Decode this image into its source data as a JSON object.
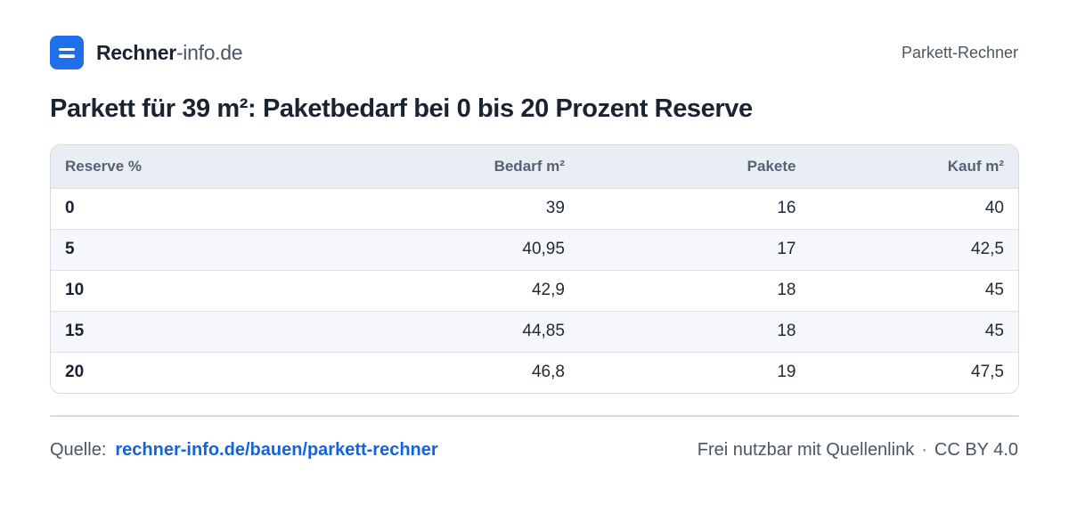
{
  "header": {
    "brand_strong": "Rechner",
    "brand_rest": "-info.de",
    "section": "Parkett-Rechner",
    "accent": "#1f6feb"
  },
  "title": "Parkett für 39 m²: Paketbedarf bei 0 bis 20 Prozent Reserve",
  "table": {
    "columns": [
      "Reserve %",
      "Bedarf m²",
      "Pakete",
      "Kauf m²"
    ],
    "rows": [
      [
        "0",
        "39",
        "16",
        "40"
      ],
      [
        "5",
        "40,95",
        "17",
        "42,5"
      ],
      [
        "10",
        "42,9",
        "18",
        "45"
      ],
      [
        "15",
        "44,85",
        "18",
        "45"
      ],
      [
        "20",
        "46,8",
        "19",
        "47,5"
      ]
    ]
  },
  "footer": {
    "source_label": "Quelle:",
    "source_link": "rechner-info.de/bauen/parkett-rechner",
    "license_text": "Frei nutzbar mit Quellenlink",
    "separator": "·",
    "license_name": "CC BY 4.0",
    "link_color": "#1463d9"
  }
}
